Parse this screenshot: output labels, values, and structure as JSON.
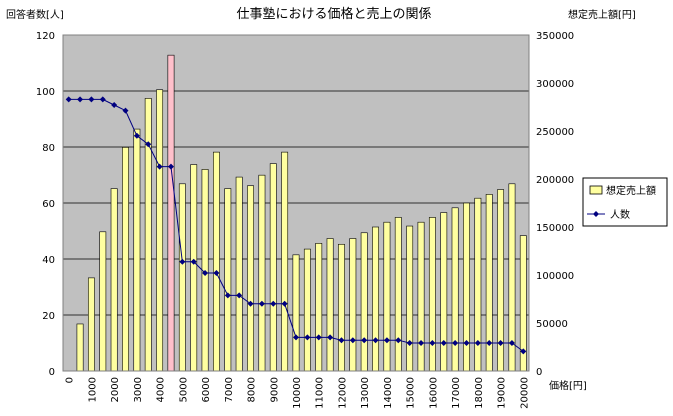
{
  "chart_data": {
    "type": "bar",
    "title": "仕事塾における価格と売上の関係",
    "y_left_label": "回答者数[人]",
    "y_right_label": "想定売上額[円]",
    "x_label": "価格[円]",
    "y_left_range": [
      0,
      120
    ],
    "y_left_ticks": [
      "0",
      "20",
      "40",
      "60",
      "80",
      "100",
      "120"
    ],
    "y_right_range": [
      0,
      350000
    ],
    "y_right_ticks": [
      "0",
      "50000",
      "100000",
      "150000",
      "200000",
      "250000",
      "300000",
      "350000"
    ],
    "x_ticks": [
      "0",
      "1000",
      "2000",
      "3000",
      "4000",
      "5000",
      "6000",
      "7000",
      "8000",
      "9000",
      "10000",
      "11000",
      "12000",
      "13000",
      "14000",
      "15000",
      "16000",
      "17000",
      "18000",
      "19000",
      "20000"
    ],
    "grid": "horizontal",
    "legend_position": "right",
    "colors": {
      "plot_bg": "#c0c0c0",
      "bar_fill": "#ffffa0",
      "bar_highlight": "#ffc0cb",
      "line": "#000080",
      "grid": "#000000"
    },
    "x": [
      0,
      500,
      1000,
      1500,
      2000,
      2500,
      3000,
      3500,
      4000,
      4500,
      5000,
      5500,
      6000,
      6500,
      7000,
      7500,
      8000,
      8500,
      9000,
      9500,
      10000,
      10500,
      11000,
      11500,
      12000,
      12500,
      13000,
      13500,
      14000,
      14500,
      15000,
      15500,
      16000,
      16500,
      17000,
      17500,
      18000,
      18500,
      19000,
      19500,
      20000
    ],
    "highlight_x": 4500,
    "series": [
      {
        "name": "想定売上額",
        "type": "bar",
        "axis": "right",
        "values": [
          0,
          49000,
          97000,
          145000,
          190000,
          233000,
          252000,
          284000,
          293000,
          329000,
          195000,
          215000,
          210000,
          228000,
          190000,
          202000,
          193000,
          204000,
          216000,
          228000,
          121000,
          127000,
          133000,
          138000,
          132000,
          138000,
          144000,
          150000,
          155000,
          160000,
          151000,
          155000,
          160000,
          165000,
          170000,
          175000,
          180000,
          184000,
          189000,
          195000,
          141000
        ]
      },
      {
        "name": "人数",
        "type": "line",
        "axis": "left",
        "values": [
          97,
          97,
          97,
          97,
          95,
          93,
          84,
          81,
          73,
          73,
          39,
          39,
          35,
          35,
          27,
          27,
          24,
          24,
          24,
          24,
          12,
          12,
          12,
          12,
          11,
          11,
          11,
          11,
          11,
          11,
          10,
          10,
          10,
          10,
          10,
          10,
          10,
          10,
          10,
          10,
          7
        ]
      }
    ]
  }
}
